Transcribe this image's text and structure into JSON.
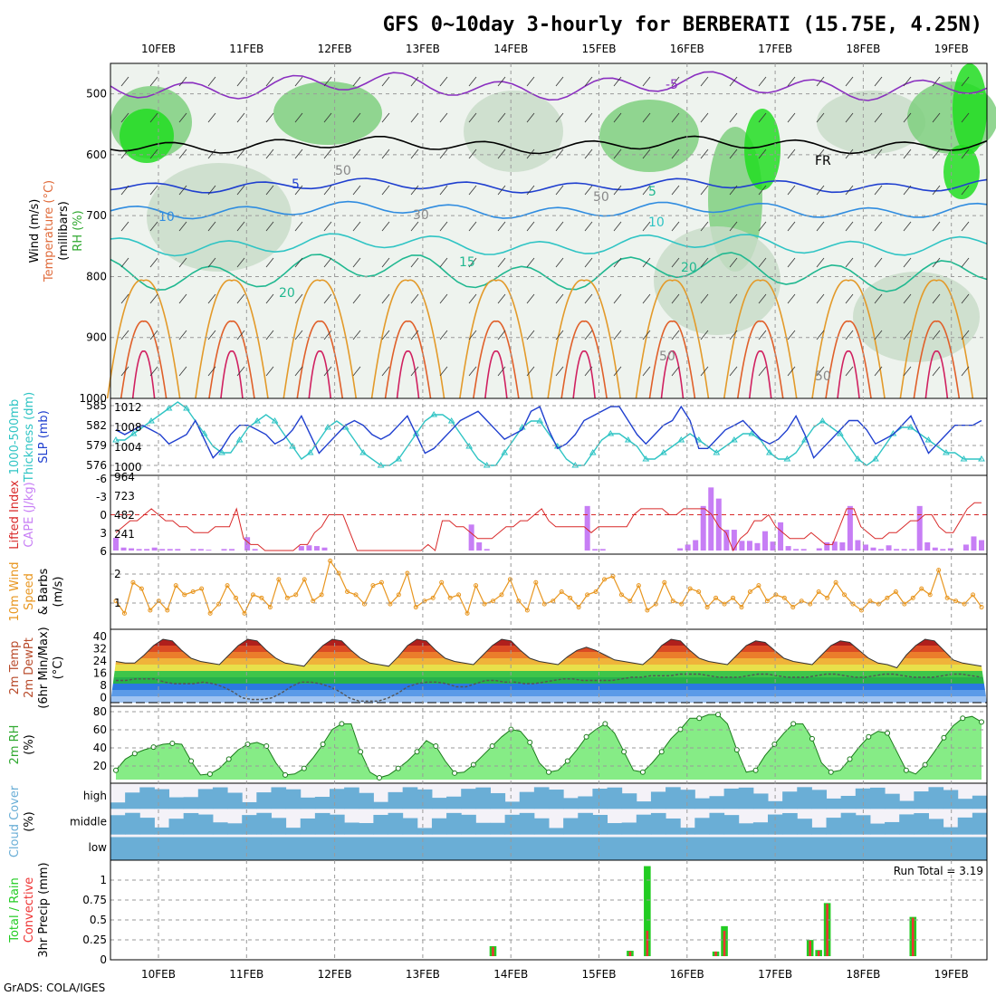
{
  "title": "GFS 0~10day 3-hourly for BERBERATI (15.75E, 4.25N)",
  "credit": "GrADS: COLA/IGES",
  "dates": [
    "10FEB",
    "11FEB",
    "12FEB",
    "13FEB",
    "14FEB",
    "15FEB",
    "16FEB",
    "17FEB",
    "18FEB",
    "19FEB"
  ],
  "colors": {
    "rh_green": "#22dd22",
    "rh_mid": "#7fcf7f",
    "rh_light": "#c9dcc9",
    "slp_line": "#1f3fcf",
    "thickness_line": "#2fc4c4",
    "lifted_line": "#d82828",
    "cape_bar": "#c77ef5",
    "wind_line": "#e8961f",
    "cloud_fill": "#6aaed6",
    "cloud_bg": "#f4f2f8",
    "precip_total": "#22cc22",
    "precip_conv": "#ee3333",
    "rh2m_fill": "#22dd22"
  },
  "panels": {
    "upper_air": {
      "labels": [
        {
          "text": "Wind (m/s)",
          "color": "#000000"
        },
        {
          "text": "Temperature (°C)",
          "color": "#e06b3b"
        },
        {
          "text": "(millibars)",
          "color": "#000000"
        },
        {
          "text": "RH (%)",
          "color": "#2fa82f"
        }
      ],
      "ylim": [
        1000,
        450
      ],
      "yticks": [
        500,
        600,
        700,
        800,
        900,
        1000
      ],
      "isotherm_labels": [
        "-5",
        "FR",
        "5",
        "10",
        "15",
        "20",
        "5",
        "10",
        "20",
        "50",
        "50",
        "30",
        "50",
        "50"
      ]
    },
    "slp": {
      "labels": [
        {
          "text": "1000-500mb",
          "color": "#2fc4c4"
        },
        {
          "text": "Thickness (dm)",
          "color": "#2fc4c4"
        },
        {
          "text": "SLP (mb)",
          "color": "#1f3fcf"
        }
      ],
      "left_ticks": [
        "585",
        "582",
        "579",
        "576"
      ],
      "right_ticks": [
        "1012",
        "1008",
        "1004",
        "1000"
      ]
    },
    "stability": {
      "labels": [
        {
          "text": "Lifted Index",
          "color": "#d82828"
        },
        {
          "text": "CAPE (J/kg)",
          "color": "#c77ef5"
        }
      ],
      "left_ticks": [
        "-6",
        "-3",
        "0",
        "3",
        "6"
      ],
      "right_ticks": [
        "964",
        "723",
        "482",
        "241"
      ]
    },
    "wind10m": {
      "labels": [
        {
          "text": "10m Wind",
          "color": "#e8961f"
        },
        {
          "text": "Speed",
          "color": "#e8961f"
        },
        {
          "text": "& Barbs",
          "color": "#000000"
        },
        {
          "text": "(m/s)",
          "color": "#000000"
        }
      ],
      "right_ticks": [
        "2",
        "1"
      ]
    },
    "temp2m": {
      "labels": [
        {
          "text": "2m Temp",
          "color": "#b84a2a"
        },
        {
          "text": "2m DewPt",
          "color": "#b84a2a"
        },
        {
          "text": "(6hr Min/Max)",
          "color": "#000000"
        },
        {
          "text": "(°C)",
          "color": "#000000"
        }
      ],
      "right_ticks": [
        "40",
        "32",
        "24",
        "16",
        "8",
        "0"
      ]
    },
    "rh2m": {
      "labels": [
        {
          "text": "2m RH",
          "color": "#2fa82f"
        },
        {
          "text": "(%)",
          "color": "#000000"
        }
      ],
      "right_ticks": [
        "80",
        "60",
        "40",
        "20"
      ]
    },
    "cloud": {
      "labels": [
        {
          "text": "Cloud Cover",
          "color": "#6aaed6"
        },
        {
          "text": "(%)",
          "color": "#000000"
        }
      ],
      "layers": [
        "high",
        "middle",
        "low"
      ]
    },
    "precip": {
      "labels": [
        {
          "text": "Total / Rain",
          "color": "#22cc22"
        },
        {
          "text": "Convective",
          "color": "#ee3333"
        },
        {
          "text": "3hr Precip (mm)",
          "color": "#000000"
        }
      ],
      "right_ticks": [
        "1",
        "0.75",
        "0.5",
        "0.25",
        "0"
      ],
      "run_total": "Run Total = 3.19"
    }
  },
  "chart_data": [
    {
      "type": "line",
      "name": "SLP (mb)",
      "x_start": "10FEB 00Z",
      "step_hours": 3,
      "ylim": [
        998,
        1013
      ],
      "values": [
        1007,
        1006,
        1007,
        1008,
        1007,
        1006,
        1004,
        1005,
        1006,
        1009,
        1005,
        1001,
        1003,
        1006,
        1008,
        1008,
        1007,
        1006,
        1004,
        1005,
        1007,
        1010,
        1006,
        1002,
        1004,
        1006,
        1008,
        1009,
        1008,
        1006,
        1005,
        1006,
        1008,
        1010,
        1006,
        1002,
        1003,
        1005,
        1007,
        1009,
        1010,
        1011,
        1009,
        1007,
        1005,
        1006,
        1007,
        1011,
        1012,
        1007,
        1003,
        1004,
        1006,
        1009,
        1010,
        1011,
        1012,
        1012,
        1009,
        1006,
        1004,
        1006,
        1008,
        1009,
        1012,
        1009,
        1003,
        1003,
        1005,
        1007,
        1008,
        1009,
        1007,
        1005,
        1004,
        1005,
        1007,
        1010,
        1006,
        1001,
        1003,
        1005,
        1007,
        1009,
        1009,
        1007,
        1004,
        1005,
        1006,
        1008,
        1010,
        1006,
        1002,
        1004,
        1006,
        1008,
        1008,
        1008,
        1009
      ]
    },
    {
      "type": "line",
      "name": "1000-500mb Thickness (dm)",
      "x_start": "10FEB 00Z",
      "step_hours": 3,
      "ylim": [
        575,
        586
      ],
      "values": [
        580,
        580,
        581,
        582,
        583,
        584,
        585,
        586,
        585,
        583,
        581,
        579,
        578,
        578,
        580,
        582,
        583,
        584,
        583,
        581,
        579,
        577,
        578,
        580,
        582,
        583,
        582,
        580,
        578,
        577,
        576,
        576,
        577,
        579,
        581,
        583,
        584,
        584,
        583,
        581,
        579,
        577,
        576,
        576,
        578,
        580,
        582,
        583,
        583,
        581,
        579,
        577,
        576,
        576,
        578,
        580,
        581,
        581,
        580,
        579,
        577,
        577,
        578,
        579,
        580,
        581,
        580,
        579,
        578,
        579,
        580,
        581,
        581,
        580,
        578,
        577,
        577,
        578,
        580,
        582,
        583,
        582,
        581,
        579,
        577,
        576,
        577,
        579,
        581,
        582,
        582,
        581,
        580,
        579,
        578,
        578,
        577,
        577,
        577
      ]
    },
    {
      "type": "line",
      "name": "Lifted Index",
      "x_start": "10FEB 00Z",
      "step_hours": 3,
      "ylim": [
        6,
        -6
      ],
      "values": [
        3,
        2,
        1,
        1,
        0,
        -1,
        0,
        1,
        1,
        2,
        2,
        3,
        3,
        3,
        2,
        2,
        2,
        -1,
        4,
        5,
        5,
        6,
        6,
        6,
        6,
        6,
        5,
        5,
        3,
        2,
        0,
        0,
        0,
        3,
        6,
        6,
        6,
        6,
        6,
        6,
        6,
        6,
        6,
        6,
        5,
        6,
        1,
        1,
        2,
        2,
        3,
        4,
        4,
        4,
        3,
        2,
        2,
        1,
        1,
        0,
        -1,
        1,
        2,
        2,
        2,
        2,
        2,
        3,
        2,
        2,
        2,
        2,
        2,
        0,
        -1,
        -1,
        -1,
        -1,
        0,
        0,
        -1,
        -1,
        -1,
        -1,
        0,
        2,
        3,
        6,
        4,
        3,
        1,
        1,
        0,
        2,
        3,
        4,
        4,
        4,
        3,
        4,
        5,
        5,
        2,
        -1,
        -1,
        2,
        3,
        4,
        4,
        3,
        3,
        2,
        1,
        1,
        0,
        0,
        2,
        3,
        3,
        1,
        -1,
        -2,
        -2
      ]
    },
    {
      "type": "bar",
      "name": "CAPE (J/kg)",
      "x_start": "10FEB 00Z",
      "step_hours": 3,
      "ylim": [
        0,
        964
      ],
      "values": [
        170,
        40,
        30,
        20,
        20,
        40,
        20,
        20,
        20,
        0,
        20,
        20,
        10,
        0,
        20,
        20,
        0,
        180,
        20,
        0,
        0,
        0,
        0,
        0,
        60,
        70,
        60,
        40,
        0,
        0,
        0,
        0,
        0,
        0,
        0,
        0,
        0,
        0,
        0,
        0,
        0,
        0,
        0,
        0,
        0,
        0,
        350,
        110,
        20,
        0,
        0,
        0,
        0,
        0,
        0,
        0,
        0,
        0,
        0,
        0,
        0,
        600,
        20,
        20,
        0,
        0,
        0,
        0,
        0,
        0,
        0,
        0,
        0,
        30,
        80,
        140,
        600,
        850,
        700,
        280,
        280,
        130,
        130,
        100,
        260,
        120,
        380,
        60,
        20,
        20,
        0,
        30,
        110,
        120,
        110,
        600,
        140,
        80,
        40,
        20,
        70,
        20,
        20,
        20,
        600,
        110,
        40,
        20,
        30,
        0,
        80,
        190,
        140
      ]
    },
    {
      "type": "line",
      "name": "10m Wind Speed (m/s)",
      "x_start": "10FEB 00Z",
      "step_hours": 3,
      "ylim": [
        0.5,
        2.7
      ],
      "values": [
        1.3,
        0.9,
        1.9,
        1.7,
        1.0,
        1.3,
        1.0,
        1.8,
        1.5,
        1.6,
        1.7,
        0.9,
        1.2,
        1.8,
        1.4,
        0.9,
        1.5,
        1.4,
        1.1,
        2.0,
        1.4,
        1.5,
        2.0,
        1.3,
        1.5,
        2.6,
        2.2,
        1.6,
        1.5,
        1.2,
        1.8,
        1.9,
        1.2,
        1.5,
        2.2,
        1.1,
        1.3,
        1.4,
        1.9,
        1.4,
        1.5,
        0.9,
        1.8,
        1.2,
        1.3,
        1.5,
        2.0,
        1.3,
        1.0,
        1.9,
        1.2,
        1.3,
        1.6,
        1.4,
        1.1,
        1.5,
        1.6,
        2.0,
        2.1,
        1.5,
        1.3,
        1.8,
        1.0,
        1.2,
        1.9,
        1.3,
        1.2,
        1.7,
        1.6,
        1.1,
        1.4,
        1.2,
        1.4,
        1.1,
        1.6,
        1.8,
        1.3,
        1.5,
        1.4,
        1.1,
        1.3,
        1.2,
        1.6,
        1.4,
        1.9,
        1.5,
        1.2,
        1.0,
        1.3,
        1.2,
        1.4,
        1.6,
        1.2,
        1.4,
        1.7,
        1.5,
        2.3,
        1.4,
        1.3,
        1.2,
        1.5,
        1.1
      ]
    },
    {
      "type": "area",
      "name": "2m Temp (°C)",
      "x_start": "10FEB 00Z",
      "step_hours": 3,
      "ylim": [
        0,
        44
      ],
      "values": [
        26,
        25,
        25,
        30,
        36,
        40,
        39,
        33,
        28,
        26,
        25,
        24,
        30,
        36,
        40,
        39,
        33,
        28,
        25,
        24,
        23,
        30,
        36,
        40,
        39,
        33,
        28,
        25,
        24,
        23,
        29,
        36,
        40,
        39,
        33,
        28,
        26,
        25,
        24,
        30,
        36,
        40,
        39,
        33,
        28,
        26,
        25,
        24,
        29,
        33,
        35,
        33,
        30,
        27,
        26,
        25,
        24,
        29,
        36,
        40,
        39,
        33,
        28,
        26,
        25,
        24,
        30,
        36,
        39,
        38,
        33,
        28,
        26,
        25,
        24,
        30,
        36,
        39,
        38,
        33,
        28,
        25,
        24,
        22,
        30,
        36,
        40,
        39,
        33,
        27,
        25,
        24,
        23
      ]
    },
    {
      "type": "line",
      "name": "2m DewPt (°C)",
      "x_start": "10FEB 00Z",
      "step_hours": 3,
      "ylim": [
        0,
        44
      ],
      "values": [
        14,
        14,
        15,
        15,
        15,
        13,
        12,
        12,
        12,
        13,
        12,
        10,
        7,
        3,
        2,
        2,
        3,
        6,
        10,
        13,
        13,
        12,
        10,
        7,
        3,
        1,
        1,
        1,
        3,
        6,
        10,
        12,
        13,
        13,
        12,
        10,
        10,
        12,
        14,
        14,
        13,
        13,
        12,
        12,
        13,
        14,
        15,
        15,
        14,
        14,
        14,
        14,
        15,
        16,
        16,
        17,
        17,
        17,
        18,
        18,
        18,
        17,
        16,
        16,
        16,
        17,
        18,
        18,
        17,
        16,
        16,
        16,
        17,
        18,
        18,
        17,
        16,
        16,
        17,
        18,
        18,
        17,
        16,
        16,
        16,
        17,
        18,
        18,
        17,
        16
      ]
    },
    {
      "type": "area",
      "name": "2m RH (%)",
      "x_start": "10FEB 00Z",
      "step_hours": 3,
      "ylim": [
        10,
        85
      ],
      "values": [
        20,
        32,
        38,
        42,
        45,
        48,
        49,
        48,
        30,
        15,
        16,
        22,
        32,
        42,
        48,
        50,
        46,
        28,
        15,
        16,
        22,
        34,
        48,
        64,
        70,
        70,
        40,
        18,
        12,
        15,
        22,
        30,
        40,
        52,
        46,
        30,
        17,
        18,
        26,
        36,
        46,
        56,
        64,
        62,
        50,
        28,
        18,
        20,
        30,
        42,
        56,
        64,
        70,
        60,
        40,
        20,
        18,
        28,
        40,
        54,
        64,
        76,
        76,
        80,
        80,
        70,
        42,
        18,
        20,
        36,
        48,
        60,
        70,
        70,
        54,
        28,
        18,
        20,
        32,
        45,
        56,
        62,
        60,
        40,
        20,
        16,
        26,
        40,
        55,
        68,
        76,
        78,
        72
      ]
    },
    {
      "type": "bar",
      "name": "3hr Precip Total (mm)",
      "x_start": "10FEB 00Z",
      "step_hours": 3,
      "ylim": [
        0,
        1.2
      ],
      "values": [
        0,
        0,
        0,
        0,
        0,
        0,
        0,
        0,
        0,
        0,
        0,
        0,
        0,
        0,
        0,
        0,
        0,
        0,
        0,
        0,
        0,
        0,
        0,
        0,
        0,
        0,
        0,
        0,
        0,
        0,
        0,
        0,
        0,
        0,
        0,
        0,
        0,
        0,
        0,
        0,
        0,
        0,
        0,
        0,
        0.13,
        0,
        0,
        0,
        0,
        0,
        0,
        0,
        0,
        0,
        0,
        0,
        0,
        0,
        0,
        0,
        0.07,
        0,
        1.17,
        0,
        0,
        0,
        0,
        0,
        0,
        0,
        0.06,
        0.39,
        0,
        0,
        0,
        0,
        0,
        0,
        0,
        0,
        0,
        0.21,
        0.08,
        0.69,
        0,
        0,
        0,
        0,
        0,
        0,
        0,
        0,
        0,
        0.51,
        0,
        0,
        0,
        0,
        0,
        0,
        0,
        0
      ]
    },
    {
      "type": "bar",
      "name": "3hr Precip Convective (mm)",
      "x_start": "10FEB 00Z",
      "step_hours": 3,
      "ylim": [
        0,
        1.2
      ],
      "values": [
        0,
        0,
        0,
        0,
        0,
        0,
        0,
        0,
        0,
        0,
        0,
        0,
        0,
        0,
        0,
        0,
        0,
        0,
        0,
        0,
        0,
        0,
        0,
        0,
        0,
        0,
        0,
        0,
        0,
        0,
        0,
        0,
        0,
        0,
        0,
        0,
        0,
        0,
        0,
        0,
        0,
        0,
        0,
        0,
        0.12,
        0,
        0,
        0,
        0,
        0,
        0,
        0,
        0,
        0,
        0,
        0,
        0,
        0,
        0,
        0,
        0.06,
        0,
        0.33,
        0,
        0,
        0,
        0,
        0,
        0,
        0,
        0.06,
        0.33,
        0,
        0,
        0,
        0,
        0,
        0,
        0,
        0,
        0,
        0.2,
        0.07,
        0.68,
        0,
        0,
        0,
        0,
        0,
        0,
        0,
        0,
        0,
        0.5,
        0,
        0,
        0,
        0,
        0,
        0,
        0,
        0
      ]
    }
  ]
}
